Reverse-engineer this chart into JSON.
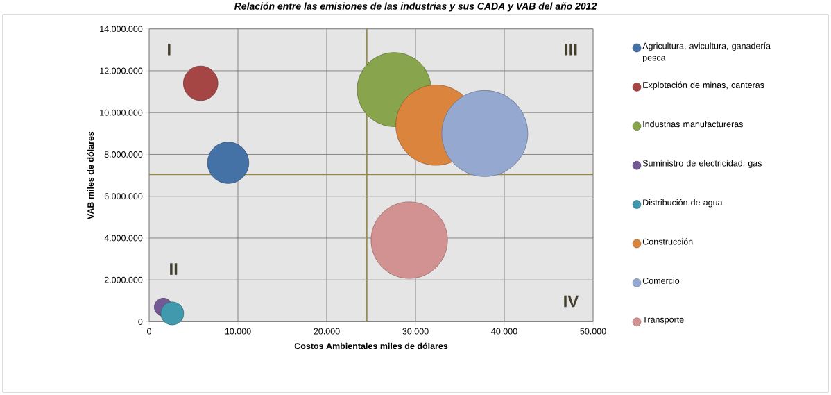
{
  "chart_data": {
    "type": "bubble",
    "title": "Relación entre  las emisiones de las industrias y sus CADA y VAB del año 2012",
    "xlabel": "Costos Ambientales miles de dólares",
    "ylabel": "VAB miles de dólares",
    "xlim": [
      0,
      50000
    ],
    "ylim": [
      0,
      14000000
    ],
    "xticks": [
      0,
      {
        "value": 10000,
        "label": "10.000"
      },
      {
        "value": 20000,
        "label": "20.000"
      },
      {
        "value": 30000,
        "label": "30.000"
      },
      {
        "value": 40000,
        "label": "40.000"
      },
      {
        "value": 50000,
        "label": "50.000"
      }
    ],
    "yticks": [
      0,
      {
        "value": 2000000,
        "label": "2.000.000"
      },
      {
        "value": 4000000,
        "label": "4.000.000"
      },
      {
        "value": 6000000,
        "label": "6.000.000"
      },
      {
        "value": 8000000,
        "label": "8.000.000"
      },
      {
        "value": 10000000,
        "label": "10.000.000"
      },
      {
        "value": 12000000,
        "label": "12.000.000"
      },
      {
        "value": 14000000,
        "label": "14.000.000"
      }
    ],
    "grid": true,
    "legend": "right",
    "series": [
      {
        "name": "Agricultura, avicultura, ganadería  pesca",
        "color": "#4471a6",
        "x": [
          8900
        ],
        "values": [
          7600000
        ],
        "sizes": [
          0.23
        ]
      },
      {
        "name": "Explotación de minas, canteras",
        "color": "#a64644",
        "x": [
          5800
        ],
        "values": [
          11400000
        ],
        "sizes": [
          0.16
        ]
      },
      {
        "name": "Industrias manufactureras",
        "color": "#88a44c",
        "x": [
          27600
        ],
        "values": [
          11100000
        ],
        "sizes": [
          0.74
        ]
      },
      {
        "name": "Suministro de electricidad, gas",
        "color": "#735a94",
        "x": [
          1600
        ],
        "values": [
          700000
        ],
        "sizes": [
          0.044
        ]
      },
      {
        "name": "Distribución de agua",
        "color": "#4199ad",
        "x": [
          2600
        ],
        "values": [
          400000
        ],
        "sizes": [
          0.071
        ]
      },
      {
        "name": "Construcción",
        "color": "#db843d",
        "x": [
          32300
        ],
        "values": [
          9400000
        ],
        "sizes": [
          0.87
        ]
      },
      {
        "name": "Comercio",
        "color": "#94a8d0",
        "x": [
          37800
        ],
        "values": [
          9000000
        ],
        "sizes": [
          1
        ]
      },
      {
        "name": "Transporte",
        "color": "#d39292",
        "x": [
          29300
        ],
        "values": [
          3900000
        ],
        "sizes": [
          0.79
        ]
      }
    ],
    "ref_lines": [
      {
        "axis": "x",
        "value": 24500,
        "color": "#948a54"
      },
      {
        "axis": "y",
        "value": 7050000,
        "color": "#948a54"
      }
    ],
    "annotations": [
      "I",
      "II",
      "III",
      "IV"
    ]
  }
}
